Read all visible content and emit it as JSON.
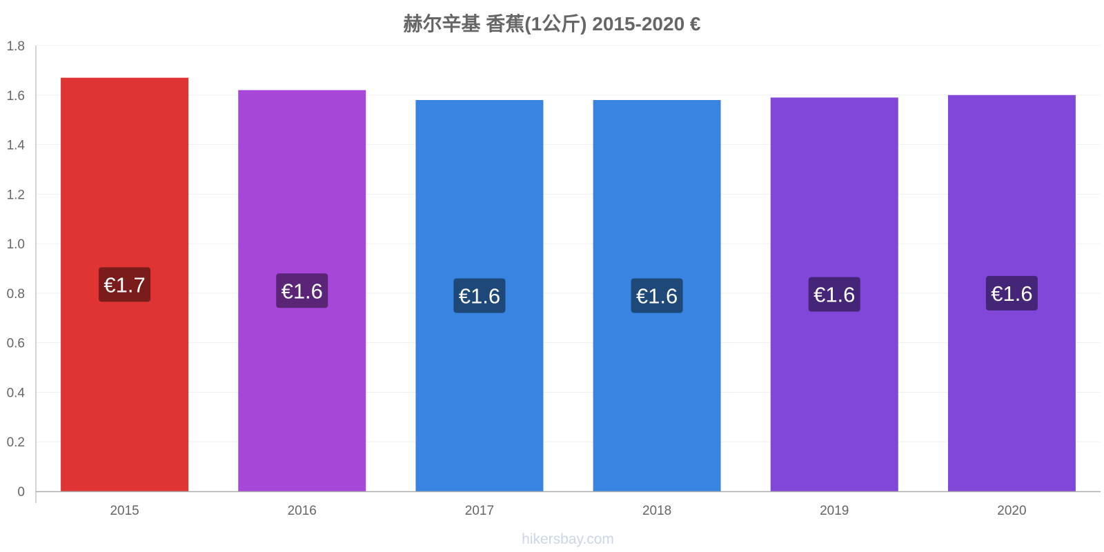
{
  "chart_data": {
    "type": "bar",
    "title": "赫尔辛基 香蕉(1公斤) 2015-2020 €",
    "categories": [
      "2015",
      "2016",
      "2017",
      "2018",
      "2019",
      "2020"
    ],
    "values": [
      1.67,
      1.62,
      1.58,
      1.58,
      1.59,
      1.6
    ],
    "labels": [
      "€1.7",
      "€1.6",
      "€1.6",
      "€1.6",
      "€1.6",
      "€1.6"
    ],
    "colors": [
      "#e03434",
      "#a647d9",
      "#3884e0",
      "#3884e0",
      "#8147d9",
      "#8147d9"
    ],
    "label_bg_colors": [
      "#7a1c1c",
      "#5a2577",
      "#1e4878",
      "#1e4878",
      "#452577",
      "#452577"
    ],
    "ylim": [
      0,
      1.8
    ],
    "yticks": [
      0,
      0.2,
      0.4,
      0.6,
      0.8,
      1.0,
      1.2,
      1.4,
      1.6,
      1.8
    ],
    "ytick_labels": [
      "0",
      "0.2",
      "0.4",
      "0.6",
      "0.8",
      "1.0",
      "1.2",
      "1.4",
      "1.6",
      "1.8"
    ],
    "grid": true,
    "xlabel": "",
    "ylabel": ""
  },
  "watermark": "hikersbay.com"
}
